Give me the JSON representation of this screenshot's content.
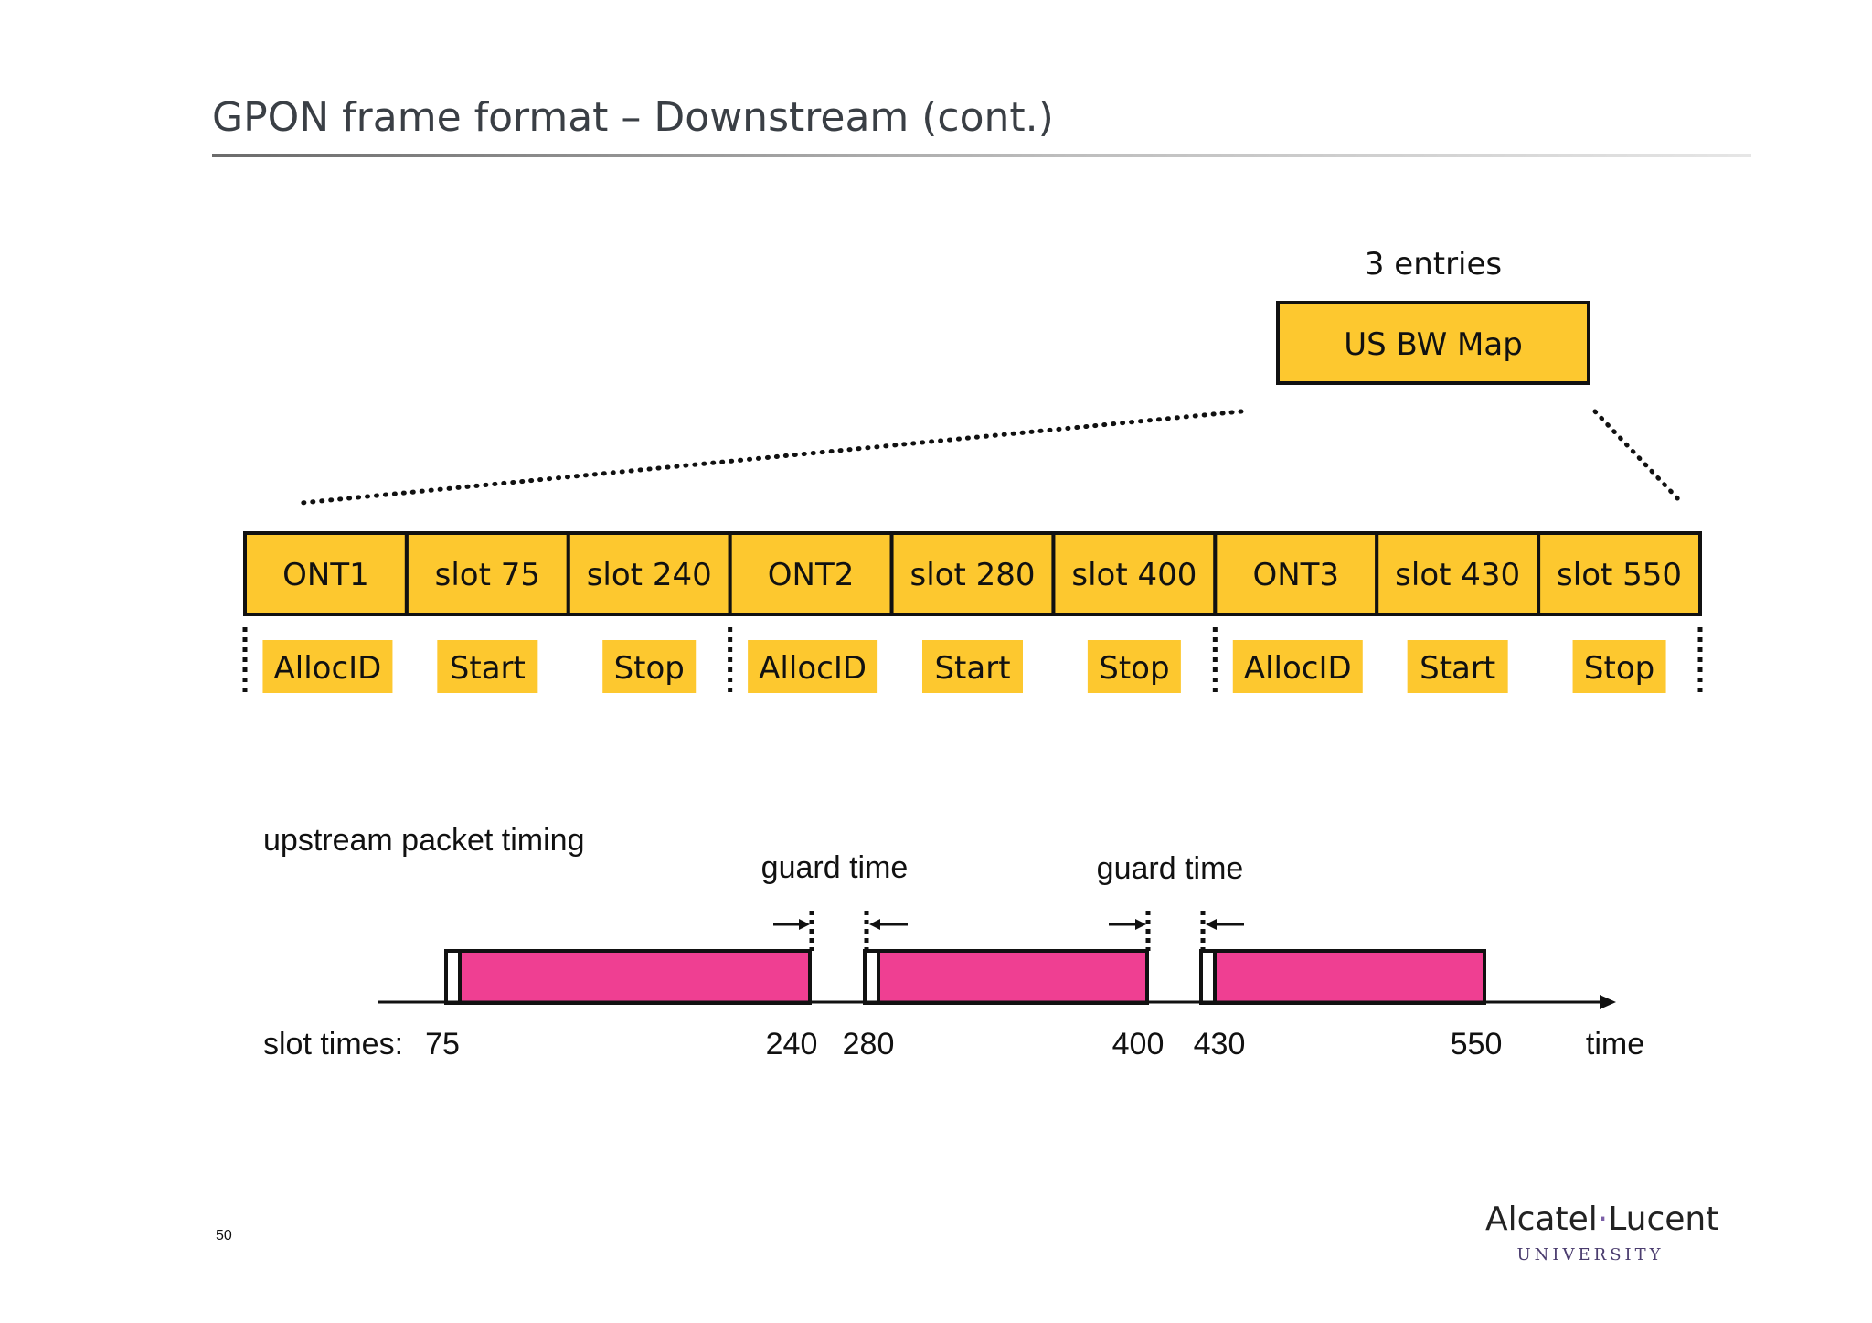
{
  "page": {
    "title": "GPON frame format – Downstream (cont.)",
    "page_number": "50"
  },
  "bwmap": {
    "label": "US BW Map",
    "entries_label": "3 entries"
  },
  "frame_cells": [
    "ONT1",
    "slot 75",
    "slot 240",
    "ONT2",
    "slot 280",
    "slot 400",
    "ONT3",
    "slot 430",
    "slot 550"
  ],
  "field_labels": [
    "AllocID",
    "Start",
    "Stop",
    "AllocID",
    "Start",
    "Stop",
    "AllocID",
    "Start",
    "Stop"
  ],
  "timing": {
    "label": "upstream packet timing",
    "guard_labels": [
      "guard time",
      "guard time"
    ],
    "slot_times_label": "slot times:",
    "tick_labels": [
      "75",
      "240",
      "280",
      "400",
      "430",
      "550"
    ],
    "time_label": "time",
    "bursts": [
      {
        "start": 75,
        "stop": 240
      },
      {
        "start": 280,
        "stop": 400
      },
      {
        "start": 430,
        "stop": 550
      }
    ]
  },
  "logo": {
    "brand_left": "Alcatel",
    "brand_dot": "·",
    "brand_right": "Lucent",
    "subtitle": "UNIVERSITY"
  },
  "colors": {
    "cell_fill": "#fdc82f",
    "burst_fill": "#ef3f92",
    "logo_dot": "#7b5ea7"
  }
}
